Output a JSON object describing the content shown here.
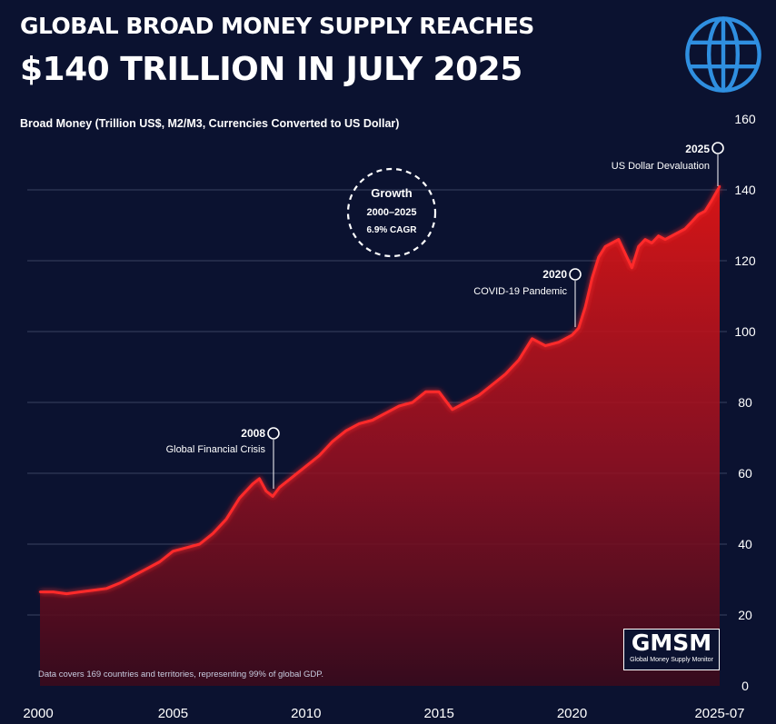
{
  "header": {
    "title_line1": "GLOBAL BROAD MONEY SUPPLY REACHES",
    "title_line2": "$140 TRILLION IN JULY 2025"
  },
  "brand": {
    "logo_text": "GMSM",
    "logo_sub": "Global Money Supply Monitor"
  },
  "colors": {
    "background": "#0b1230",
    "line": "#ff2a2a",
    "area_top": "#e01515",
    "area_bottom": "#3a0a1c",
    "grid": "#3a4160",
    "text": "#ffffff",
    "globe": "#2f8fe0"
  },
  "icons": {
    "logo": "globe-icon"
  },
  "chart_data": {
    "type": "area",
    "title": "GLOBAL BROAD MONEY SUPPLY REACHES $140 TRILLION IN JULY 2025",
    "ylabel": "Broad Money (Trillion US$, M2/M3, Currencies Converted to US Dollar)",
    "xlabel": "",
    "ylim": [
      0,
      160
    ],
    "xlim": [
      2000,
      2025.55
    ],
    "y_ticks": [
      "0",
      "20",
      "40",
      "60",
      "80",
      "100",
      "120",
      "140",
      "160"
    ],
    "x_ticks": [
      {
        "x": 2000,
        "label": "2000"
      },
      {
        "x": 2005,
        "label": "2005"
      },
      {
        "x": 2010,
        "label": "2010"
      },
      {
        "x": 2015,
        "label": "2015"
      },
      {
        "x": 2020,
        "label": "2020"
      },
      {
        "x": 2025.55,
        "label": "2025-07"
      }
    ],
    "y_axis_side": "right",
    "grid": true,
    "series": [
      {
        "name": "",
        "x": [
          2000,
          2000.5,
          2001,
          2001.5,
          2002,
          2002.5,
          2003,
          2003.5,
          2004,
          2004.5,
          2005,
          2005.5,
          2006,
          2006.5,
          2007,
          2007.5,
          2008,
          2008.25,
          2008.5,
          2008.75,
          2009,
          2009.5,
          2010,
          2010.5,
          2011,
          2011.5,
          2012,
          2012.5,
          2013,
          2013.5,
          2014,
          2014.5,
          2015,
          2015.5,
          2016,
          2016.5,
          2017,
          2017.5,
          2018,
          2018.5,
          2019,
          2019.5,
          2020,
          2020.25,
          2020.5,
          2020.75,
          2021,
          2021.25,
          2021.5,
          2021.75,
          2022,
          2022.25,
          2022.5,
          2022.75,
          2023,
          2023.25,
          2023.5,
          2023.75,
          2024,
          2024.25,
          2024.5,
          2024.75,
          2025,
          2025.25,
          2025.55
        ],
        "values": [
          26.5,
          26.5,
          26,
          26.5,
          27,
          27.5,
          29,
          31,
          33,
          35,
          38,
          39,
          40,
          43,
          47,
          53,
          57,
          58.5,
          55,
          53.5,
          56,
          59,
          62,
          65,
          69,
          72,
          74,
          75,
          77,
          79,
          80,
          83,
          83,
          78,
          80,
          82,
          85,
          88,
          92,
          98,
          96,
          97,
          99,
          101,
          107,
          115,
          121,
          124,
          125,
          126,
          122,
          118,
          124,
          126,
          125,
          127,
          126,
          127,
          128,
          129,
          131,
          133,
          134,
          137,
          141
        ]
      }
    ],
    "annotations": [
      {
        "year": "2008",
        "text": "Global Financial Crisis",
        "x": 2008.75
      },
      {
        "year": "2020",
        "text": "COVID-19 Pandemic",
        "x": 2020.1
      },
      {
        "year": "2025",
        "text": "US Dollar Devaluation",
        "x": 2025.55
      }
    ],
    "growth_badge": {
      "line1": "Growth",
      "line2": "2000–2025",
      "line3": "6.9% CAGR"
    },
    "footnote": "Data covers 169 countries and territories, representing 99% of global GDP."
  }
}
